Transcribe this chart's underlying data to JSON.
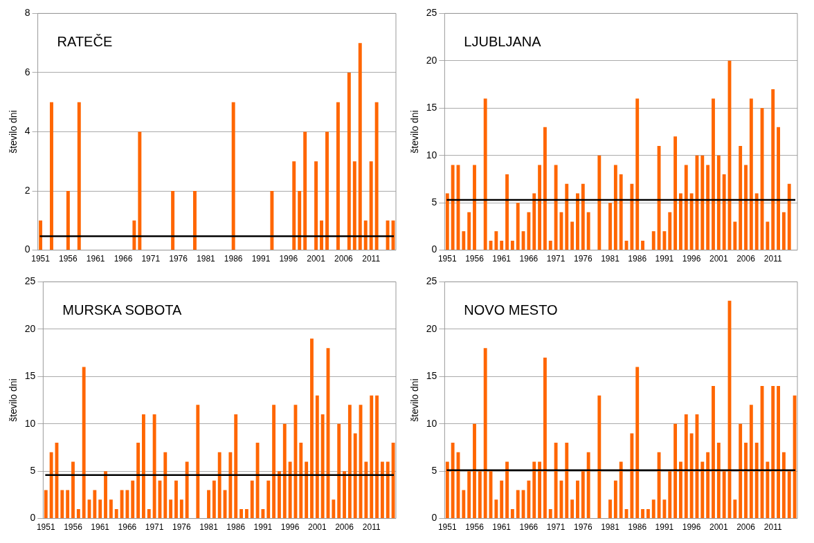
{
  "chart_data": [
    {
      "type": "bar",
      "title": "RATEČE",
      "ylabel": "število dni",
      "ylim": [
        0,
        8
      ],
      "yticks": [
        0,
        2,
        4,
        6,
        8
      ],
      "grid": "y",
      "categories": [
        "1951",
        null,
        null,
        null,
        null,
        "1956",
        null,
        null,
        null,
        null,
        "1961",
        null,
        null,
        null,
        null,
        "1966",
        null,
        null,
        null,
        null,
        "1971",
        null,
        null,
        null,
        null,
        "1976",
        null,
        null,
        null,
        null,
        "1981",
        null,
        null,
        null,
        null,
        "1986",
        null,
        null,
        null,
        null,
        "1991",
        null,
        null,
        null,
        null,
        "1996",
        null,
        null,
        null,
        null,
        "2001",
        null,
        null,
        null,
        null,
        "2006",
        null,
        null,
        null,
        null,
        "2011",
        null,
        null,
        null,
        null
      ],
      "series": [
        {
          "color": "#ff6600",
          "values": [
            1,
            0,
            5,
            0,
            0,
            2,
            0,
            5,
            0,
            0,
            0,
            0,
            0,
            0,
            0,
            0,
            0,
            1,
            4,
            0,
            0,
            0,
            0,
            0,
            2,
            0,
            0,
            0,
            2,
            0,
            0,
            0,
            0,
            0,
            0,
            5,
            0,
            0,
            0,
            0,
            0,
            0,
            2,
            0,
            0,
            0,
            3,
            2,
            4,
            0,
            3,
            1,
            4,
            0,
            5,
            0,
            6,
            3,
            7,
            1,
            3,
            5,
            0,
            1,
            1
          ]
        }
      ],
      "ref_lines": [
        {
          "axis": "y",
          "value": 0.47,
          "color": "#000000"
        }
      ]
    },
    {
      "type": "bar",
      "title": "LJUBLJANA",
      "ylabel": "število dni",
      "ylim": [
        0,
        25
      ],
      "yticks": [
        0,
        5,
        10,
        15,
        20,
        25
      ],
      "grid": "y",
      "categories": [
        "1951",
        null,
        null,
        null,
        null,
        "1956",
        null,
        null,
        null,
        null,
        "1961",
        null,
        null,
        null,
        null,
        "1966",
        null,
        null,
        null,
        null,
        "1971",
        null,
        null,
        null,
        null,
        "1976",
        null,
        null,
        null,
        null,
        "1981",
        null,
        null,
        null,
        null,
        "1986",
        null,
        null,
        null,
        null,
        "1991",
        null,
        null,
        null,
        null,
        "1996",
        null,
        null,
        null,
        null,
        "2001",
        null,
        null,
        null,
        null,
        "2006",
        null,
        null,
        null,
        null,
        "2011",
        null,
        null,
        null,
        null
      ],
      "series": [
        {
          "color": "#ff6600",
          "values": [
            6,
            9,
            9,
            2,
            4,
            9,
            0,
            16,
            1,
            2,
            1,
            8,
            1,
            5,
            2,
            4,
            6,
            9,
            13,
            1,
            9,
            4,
            7,
            3,
            6,
            7,
            4,
            0,
            10,
            0,
            5,
            9,
            8,
            1,
            7,
            16,
            1,
            0,
            2,
            11,
            2,
            4,
            12,
            6,
            9,
            6,
            10,
            10,
            9,
            16,
            10,
            8,
            20,
            3,
            11,
            9,
            16,
            6,
            15,
            3,
            17,
            13,
            4,
            7,
            null
          ]
        }
      ],
      "ref_lines": [
        {
          "axis": "y",
          "value": 5.3,
          "color": "#000000"
        }
      ]
    },
    {
      "type": "bar",
      "title": "MURSKA SOBOTA",
      "ylabel": "število dni",
      "ylim": [
        0,
        25
      ],
      "yticks": [
        0,
        5,
        10,
        15,
        20,
        25
      ],
      "grid": "y",
      "categories": [
        "1951",
        null,
        null,
        null,
        null,
        "1956",
        null,
        null,
        null,
        null,
        "1961",
        null,
        null,
        null,
        null,
        "1966",
        null,
        null,
        null,
        null,
        "1971",
        null,
        null,
        null,
        null,
        "1976",
        null,
        null,
        null,
        null,
        "1981",
        null,
        null,
        null,
        null,
        "1986",
        null,
        null,
        null,
        null,
        "1991",
        null,
        null,
        null,
        null,
        "1996",
        null,
        null,
        null,
        null,
        "2001",
        null,
        null,
        null,
        null,
        "2006",
        null,
        null,
        null,
        null,
        "2011",
        null,
        null,
        null,
        null
      ],
      "series": [
        {
          "color": "#ff6600",
          "values": [
            3,
            7,
            8,
            3,
            3,
            6,
            1,
            16,
            2,
            3,
            2,
            5,
            2,
            1,
            3,
            3,
            4,
            8,
            11,
            1,
            11,
            4,
            7,
            2,
            4,
            2,
            6,
            0,
            12,
            0,
            3,
            4,
            7,
            3,
            7,
            11,
            1,
            1,
            4,
            8,
            1,
            4,
            12,
            5,
            10,
            6,
            12,
            8,
            6,
            19,
            13,
            11,
            18,
            2,
            10,
            5,
            12,
            9,
            12,
            6,
            13,
            13,
            6,
            6,
            8
          ]
        }
      ],
      "ref_lines": [
        {
          "axis": "y",
          "value": 4.6,
          "color": "#000000"
        }
      ]
    },
    {
      "type": "bar",
      "title": "NOVO MESTO",
      "ylabel": "število dni",
      "ylim": [
        0,
        25
      ],
      "yticks": [
        0,
        5,
        10,
        15,
        20,
        25
      ],
      "grid": "y",
      "categories": [
        "1951",
        null,
        null,
        null,
        null,
        "1956",
        null,
        null,
        null,
        null,
        "1961",
        null,
        null,
        null,
        null,
        "1966",
        null,
        null,
        null,
        null,
        "1971",
        null,
        null,
        null,
        null,
        "1976",
        null,
        null,
        null,
        null,
        "1981",
        null,
        null,
        null,
        null,
        "1986",
        null,
        null,
        null,
        null,
        "1991",
        null,
        null,
        null,
        null,
        "1996",
        null,
        null,
        null,
        null,
        "2001",
        null,
        null,
        null,
        null,
        "2006",
        null,
        null,
        null,
        null,
        "2011",
        null,
        null,
        null,
        null
      ],
      "series": [
        {
          "color": "#ff6600",
          "values": [
            6,
            8,
            7,
            3,
            5,
            10,
            5,
            18,
            5,
            2,
            4,
            6,
            1,
            3,
            3,
            4,
            6,
            6,
            17,
            1,
            8,
            4,
            8,
            2,
            4,
            5,
            7,
            0,
            13,
            0,
            2,
            4,
            6,
            1,
            9,
            16,
            1,
            1,
            2,
            7,
            2,
            5,
            10,
            6,
            11,
            9,
            11,
            6,
            7,
            14,
            8,
            5,
            23,
            2,
            10,
            8,
            12,
            8,
            14,
            6,
            14,
            14,
            7,
            5,
            13
          ]
        }
      ],
      "ref_lines": [
        {
          "axis": "y",
          "value": 5.1,
          "color": "#000000"
        }
      ]
    }
  ]
}
